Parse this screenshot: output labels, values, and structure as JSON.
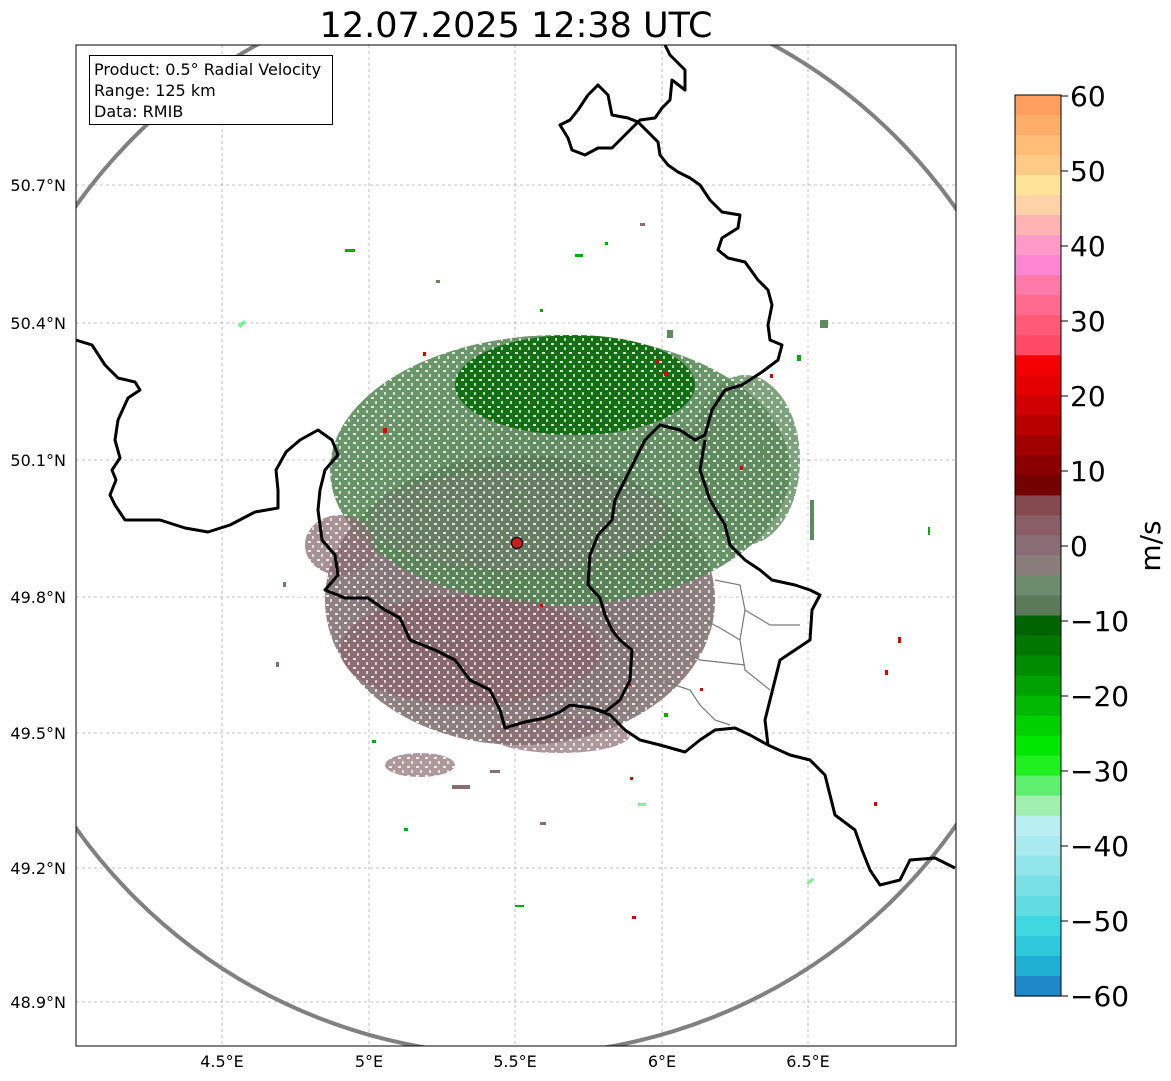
{
  "title": "12.07.2025 12:38 UTC",
  "info": {
    "product": "Product: 0.5° Radial Velocity",
    "range": "Range: 125 km",
    "data": "Data: RMIB"
  },
  "map": {
    "lat_ticks": [
      "50.7°N",
      "50.4°N",
      "50.1°N",
      "49.8°N",
      "49.5°N",
      "49.2°N",
      "48.9°N"
    ],
    "lon_ticks": [
      "4.5°E",
      "5°E",
      "5.5°E",
      "6°E",
      "6.5°E"
    ],
    "radar_site": {
      "lat": 49.914,
      "lon": 5.506,
      "marker_color": "#d11a1a"
    },
    "range_ring_color": "#808080",
    "border_color": "#000000"
  },
  "colorbar": {
    "label": "m/s",
    "ticks": [
      "60",
      "50",
      "40",
      "30",
      "20",
      "10",
      "0",
      "−10",
      "−20",
      "−30",
      "−40",
      "−50",
      "−60"
    ],
    "range": [
      -60,
      60
    ],
    "colors_top_to_bottom": [
      "#ff9e5e",
      "#ffae6a",
      "#ffbd78",
      "#ffca86",
      "#ffe399",
      "#ffd2a8",
      "#ffb3b3",
      "#ff9ac8",
      "#ff86d2",
      "#ff7aa8",
      "#ff6a8e",
      "#ff5a78",
      "#ff4a66",
      "#f40000",
      "#e40000",
      "#d00000",
      "#b80000",
      "#a00000",
      "#8a0000",
      "#740000",
      "#844a50",
      "#8a5e66",
      "#8a6e76",
      "#8a7c7a",
      "#6c8a6c",
      "#5a7a5a",
      "#006400",
      "#007800",
      "#008c00",
      "#00a000",
      "#00b800",
      "#00d000",
      "#00e800",
      "#20f020",
      "#60f070",
      "#a0f0b0",
      "#b8eef0",
      "#a8eaee",
      "#90e6ea",
      "#78e0e6",
      "#60dce2",
      "#40d8e0",
      "#30c8dc",
      "#20b0d4",
      "#1e88c8"
    ]
  }
}
